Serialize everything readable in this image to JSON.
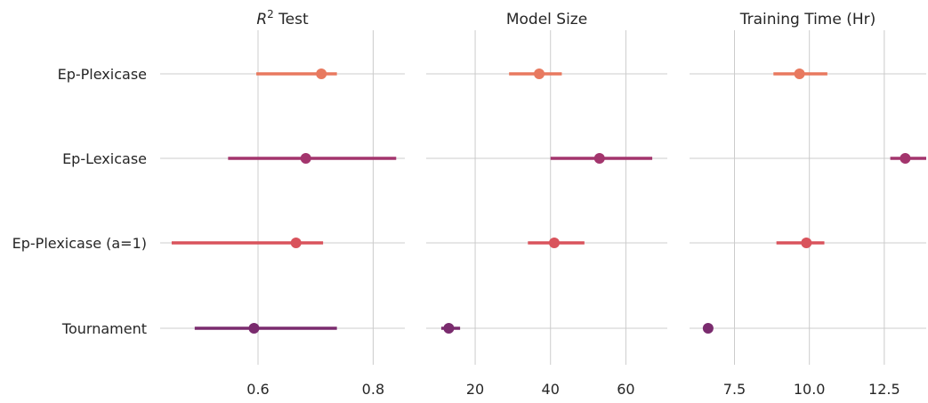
{
  "chart_data": {
    "type": "scatter",
    "subtype": "point-range (mean with error bars), shared y categories",
    "categories": [
      "Ep-Plexicase",
      "Ep-Lexicase",
      "Ep-Plexicase (a=1)",
      "Tournament"
    ],
    "category_colors": [
      "#e8795f",
      "#a3356d",
      "#d9535c",
      "#7a2b6e"
    ],
    "grid": true,
    "panels": [
      {
        "title": "R² Test",
        "xlim": [
          0.43,
          0.855
        ],
        "xticks": [
          0.6,
          0.8
        ],
        "xtick_labels": [
          "0.6",
          "0.8"
        ],
        "points": [
          {
            "category": "Ep-Plexicase",
            "mean": 0.71,
            "low": 0.597,
            "high": 0.737
          },
          {
            "category": "Ep-Lexicase",
            "mean": 0.683,
            "low": 0.548,
            "high": 0.84
          },
          {
            "category": "Ep-Plexicase (a=1)",
            "mean": 0.666,
            "low": 0.45,
            "high": 0.713
          },
          {
            "category": "Tournament",
            "mean": 0.593,
            "low": 0.49,
            "high": 0.737
          }
        ]
      },
      {
        "title": "Model Size",
        "xlim": [
          7,
          71
        ],
        "xticks": [
          20,
          40,
          60
        ],
        "xtick_labels": [
          "20",
          "40",
          "60"
        ],
        "points": [
          {
            "category": "Ep-Plexicase",
            "mean": 37,
            "low": 29,
            "high": 43
          },
          {
            "category": "Ep-Lexicase",
            "mean": 53,
            "low": 40,
            "high": 67
          },
          {
            "category": "Ep-Plexicase (a=1)",
            "mean": 41,
            "low": 34,
            "high": 49
          },
          {
            "category": "Tournament",
            "mean": 13,
            "low": 11,
            "high": 16
          }
        ]
      },
      {
        "title": "Training Time (Hr)",
        "xlim": [
          6.0,
          13.9
        ],
        "xticks": [
          7.5,
          10.0,
          12.5
        ],
        "xtick_labels": [
          "7.5",
          "10.0",
          "12.5"
        ],
        "points": [
          {
            "category": "Ep-Plexicase",
            "mean": 9.67,
            "low": 8.8,
            "high": 10.6
          },
          {
            "category": "Ep-Lexicase",
            "mean": 13.2,
            "low": 12.7,
            "high": 13.9
          },
          {
            "category": "Ep-Plexicase (a=1)",
            "mean": 9.9,
            "low": 8.9,
            "high": 10.5
          },
          {
            "category": "Tournament",
            "mean": 6.62,
            "low": 6.52,
            "high": 6.78
          }
        ]
      }
    ]
  }
}
